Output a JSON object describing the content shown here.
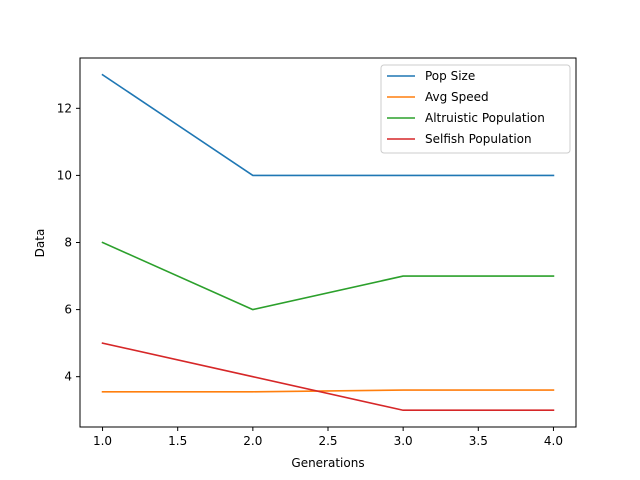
{
  "chart_data": {
    "type": "line",
    "title": "",
    "xlabel": "Generations",
    "ylabel": "Data",
    "x": [
      1.0,
      2.0,
      3.0,
      4.0
    ],
    "xlim": [
      0.85,
      4.15
    ],
    "ylim": [
      2.5,
      13.5
    ],
    "xticks": [
      1.0,
      1.5,
      2.0,
      2.5,
      3.0,
      3.5,
      4.0
    ],
    "xtick_labels": [
      "1.0",
      "1.5",
      "2.0",
      "2.5",
      "3.0",
      "3.5",
      "4.0"
    ],
    "yticks": [
      4,
      6,
      8,
      10,
      12
    ],
    "ytick_labels": [
      "4",
      "6",
      "8",
      "10",
      "12"
    ],
    "grid": false,
    "legend_position": "top-right",
    "series": [
      {
        "name": "Pop Size",
        "color": "#1f77b4",
        "values": [
          13,
          10,
          10,
          10
        ]
      },
      {
        "name": "Avg Speed",
        "color": "#ff7f0e",
        "values": [
          3.55,
          3.55,
          3.6,
          3.6
        ]
      },
      {
        "name": "Altruistic Population",
        "color": "#2ca02c",
        "values": [
          8,
          6,
          7,
          7
        ]
      },
      {
        "name": "Selfish Population",
        "color": "#d62728",
        "values": [
          5,
          4,
          3,
          3
        ]
      }
    ]
  }
}
